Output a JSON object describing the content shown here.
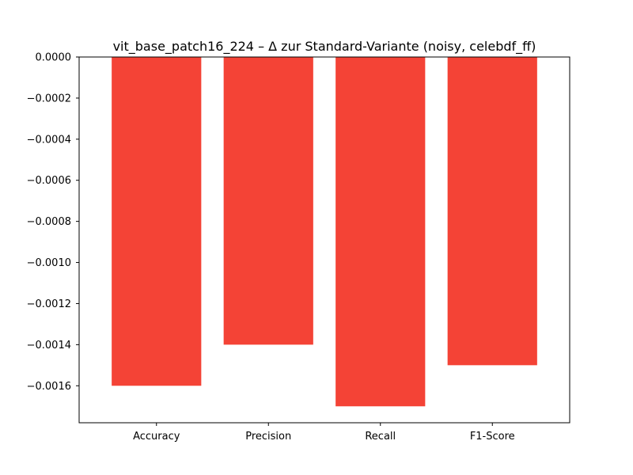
{
  "chart_data": {
    "type": "bar",
    "title": "vit_base_patch16_224 – Δ zur Standard-Variante (noisy, celebdf_ff)",
    "xlabel": "",
    "ylabel": "",
    "categories": [
      "Accuracy",
      "Precision",
      "Recall",
      "F1-Score"
    ],
    "values": [
      -0.0016,
      -0.0014,
      -0.0017,
      -0.0015
    ],
    "ylim": [
      -0.00178,
      0.0
    ],
    "yticks": [
      0.0,
      -0.0002,
      -0.0004,
      -0.0006,
      -0.0008,
      -0.001,
      -0.0012,
      -0.0014,
      -0.0016
    ],
    "ytick_labels": [
      "0.0000",
      "−0.0002",
      "−0.0004",
      "−0.0006",
      "−0.0008",
      "−0.0010",
      "−0.0012",
      "−0.0014",
      "−0.0016"
    ],
    "grid": false,
    "bar_color": "#f44336"
  }
}
